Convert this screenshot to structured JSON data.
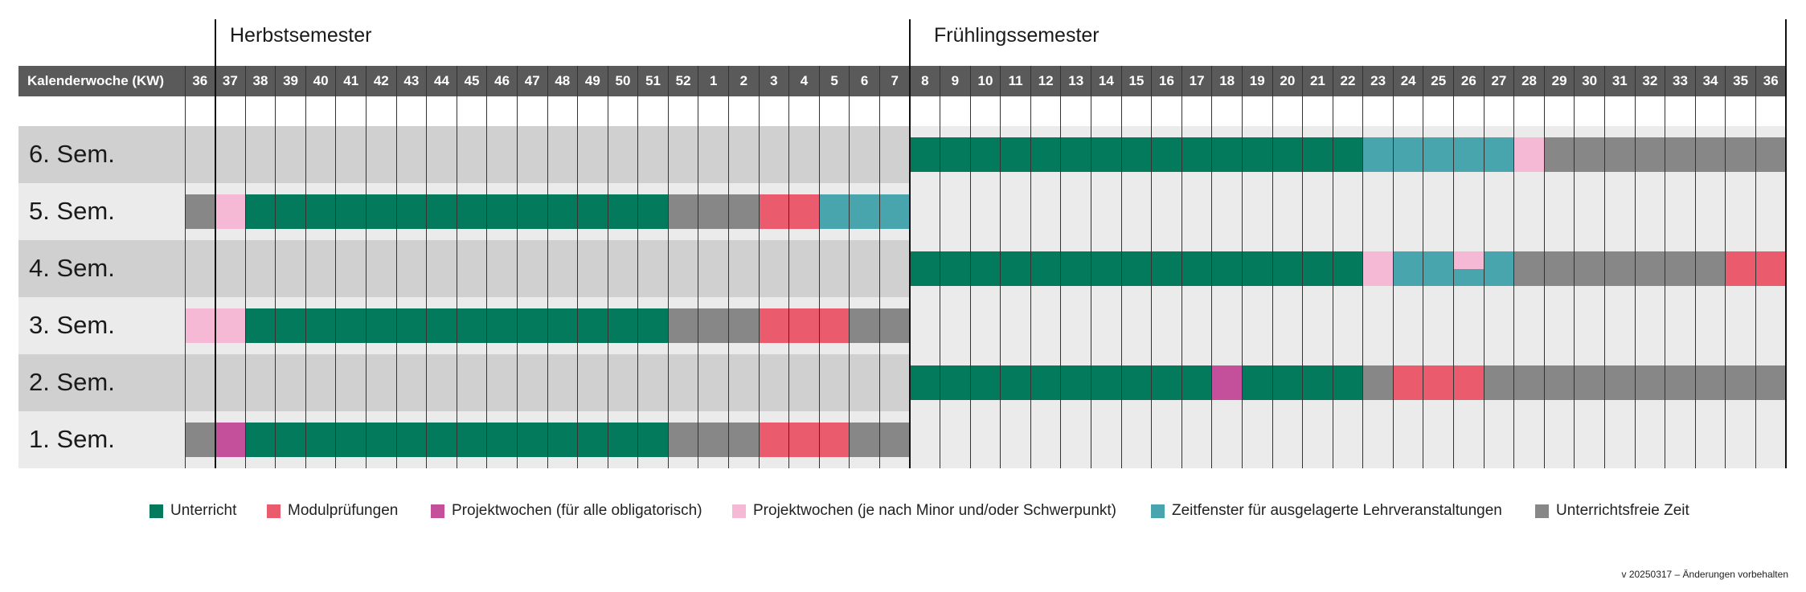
{
  "semesters": {
    "autumn_title": "Herbstsemester",
    "spring_title": "Frühlingssemester"
  },
  "header": {
    "label": "Kalenderwoche (KW)",
    "weeks": [
      "36",
      "37",
      "38",
      "39",
      "40",
      "41",
      "42",
      "43",
      "44",
      "45",
      "46",
      "47",
      "48",
      "49",
      "50",
      "51",
      "52",
      "1",
      "2",
      "3",
      "4",
      "5",
      "6",
      "7",
      "8",
      "9",
      "10",
      "11",
      "12",
      "13",
      "14",
      "15",
      "16",
      "17",
      "18",
      "19",
      "20",
      "21",
      "22",
      "23",
      "24",
      "25",
      "26",
      "27",
      "28",
      "29",
      "30",
      "31",
      "32",
      "33",
      "34",
      "35",
      "36"
    ]
  },
  "colors": {
    "U": "#027a5b",
    "M": "#ea5b6e",
    "P": "#c4509b",
    "L": "#f5b8d5",
    "Z": "#48a5ad",
    "F": "#878787",
    "band_dark": "#d0d0d0",
    "band_light": "#ebebeb",
    "header": "#5a5a5a"
  },
  "rows": [
    {
      "label": "6. Sem.",
      "segments": [
        [
          "U",
          8,
          22
        ],
        [
          "Z",
          23,
          27
        ],
        [
          "L",
          28,
          28
        ],
        [
          "F",
          29,
          36
        ]
      ]
    },
    {
      "label": "5. Sem.",
      "segments": [
        [
          "F",
          36,
          36
        ],
        [
          "L",
          37,
          37
        ],
        [
          "U",
          38,
          51
        ],
        [
          "F",
          52,
          2
        ],
        [
          "M",
          3,
          4
        ],
        [
          "Z",
          5,
          7
        ]
      ]
    },
    {
      "label": "4. Sem.",
      "segments": [
        [
          "U",
          8,
          22
        ],
        [
          "L",
          23,
          23
        ],
        [
          "Z",
          24,
          25
        ],
        [
          "ZL",
          26,
          27
        ],
        [
          "Z",
          27,
          27
        ],
        [
          "F",
          28,
          34
        ],
        [
          "M",
          35,
          36
        ]
      ]
    },
    {
      "label": "3. Sem.",
      "segments": [
        [
          "L",
          36,
          37
        ],
        [
          "U",
          38,
          51
        ],
        [
          "F",
          52,
          2
        ],
        [
          "M",
          3,
          5
        ],
        [
          "F",
          6,
          7
        ]
      ]
    },
    {
      "label": "2. Sem.",
      "segments": [
        [
          "U",
          8,
          17
        ],
        [
          "P",
          18,
          18
        ],
        [
          "U",
          19,
          22
        ],
        [
          "F",
          23,
          23
        ],
        [
          "M",
          24,
          26
        ],
        [
          "F",
          27,
          36
        ]
      ]
    },
    {
      "label": "1. Sem.",
      "segments": [
        [
          "F",
          36,
          36
        ],
        [
          "P",
          37,
          37
        ],
        [
          "U",
          38,
          51
        ],
        [
          "F",
          52,
          2
        ],
        [
          "M",
          3,
          5
        ],
        [
          "F",
          6,
          7
        ]
      ]
    }
  ],
  "legend": [
    {
      "key": "U",
      "label": "Unterricht"
    },
    {
      "key": "M",
      "label": "Modulprüfungen"
    },
    {
      "key": "P",
      "label": "Projektwochen (für alle obligatorisch)"
    },
    {
      "key": "L",
      "label": "Projektwochen (je nach Minor und/oder Schwerpunkt)"
    },
    {
      "key": "Z",
      "label": "Zeitfenster für ausgelagerte Lehrveranstaltungen"
    },
    {
      "key": "F",
      "label": "Unterrichtsfreie Zeit"
    }
  ],
  "version": "v 20250317 – Änderungen vorbehalten"
}
